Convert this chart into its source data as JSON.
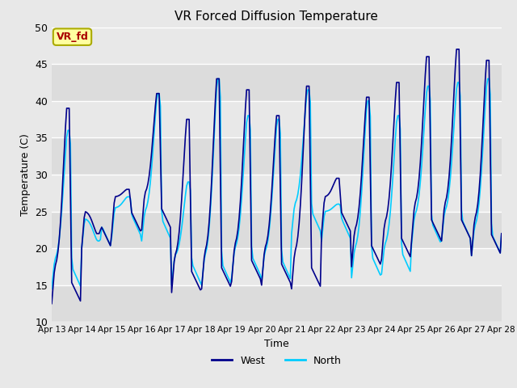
{
  "title": "VR Forced Diffusion Temperature",
  "xlabel": "Time",
  "ylabel": "Temperature (C)",
  "ylim": [
    10,
    50
  ],
  "west_color": "#00008B",
  "north_color": "#00CCFF",
  "bg_color": "#E8E8E8",
  "band_colors": [
    "#DCDCDC",
    "#E8E8E8"
  ],
  "annotation_text": "VR_fd",
  "annotation_bg": "#FFFFA0",
  "annotation_border": "#AAAA00",
  "annotation_text_color": "#AA0000",
  "xtick_labels": [
    "Apr 13",
    "Apr 14",
    "Apr 15",
    "Apr 16",
    "Apr 17",
    "Apr 18",
    "Apr 19",
    "Apr 20",
    "Apr 21",
    "Apr 22",
    "Apr 23",
    "Apr 24",
    "Apr 25",
    "Apr 26",
    "Apr 27",
    "Apr 28"
  ],
  "ytick_values": [
    10,
    15,
    20,
    25,
    30,
    35,
    40,
    45,
    50
  ],
  "figsize": [
    6.4,
    4.8
  ],
  "dpi": 100
}
